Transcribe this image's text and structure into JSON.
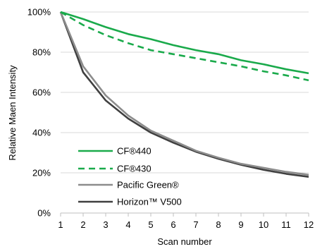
{
  "chart_data": {
    "type": "line",
    "title": "",
    "xlabel": "Scan number",
    "ylabel": "Relative Maen Intensity",
    "xlim": [
      1,
      12
    ],
    "ylim": [
      0,
      100
    ],
    "x_ticks": [
      "1",
      "2",
      "3",
      "4",
      "5",
      "6",
      "7",
      "8",
      "9",
      "10",
      "11",
      "12"
    ],
    "y_ticks": [
      "0%",
      "20%",
      "40%",
      "60%",
      "80%",
      "100%"
    ],
    "y_tick_values": [
      0,
      20,
      40,
      60,
      80,
      100
    ],
    "grid": "horizontal",
    "legend_position": "lower-left",
    "x": [
      1,
      2,
      3,
      4,
      5,
      6,
      7,
      8,
      9,
      10,
      11,
      12
    ],
    "series": [
      {
        "name": "CF®440",
        "color": "#1aaa4b",
        "dash": "solid",
        "values": [
          100,
          96.5,
          92.5,
          89,
          86.5,
          83.5,
          81,
          79,
          76,
          74,
          71.5,
          69.5
        ]
      },
      {
        "name": "CF®430",
        "color": "#1aaa4b",
        "dash": "dashed",
        "values": [
          100,
          93.5,
          88.5,
          84.5,
          81,
          79,
          77,
          75,
          73,
          70.5,
          68.5,
          66
        ]
      },
      {
        "name": "Pacific Green®",
        "color": "#8c8c8c",
        "dash": "solid",
        "values": [
          100,
          73,
          58.5,
          48.5,
          41,
          36,
          31,
          27.5,
          24.5,
          22.5,
          20.5,
          19
        ]
      },
      {
        "name": "Horizon™ V500",
        "color": "#404040",
        "dash": "solid",
        "values": [
          100,
          70,
          56,
          47,
          40,
          35,
          30.5,
          27,
          24,
          21.5,
          19.5,
          18
        ]
      }
    ]
  }
}
